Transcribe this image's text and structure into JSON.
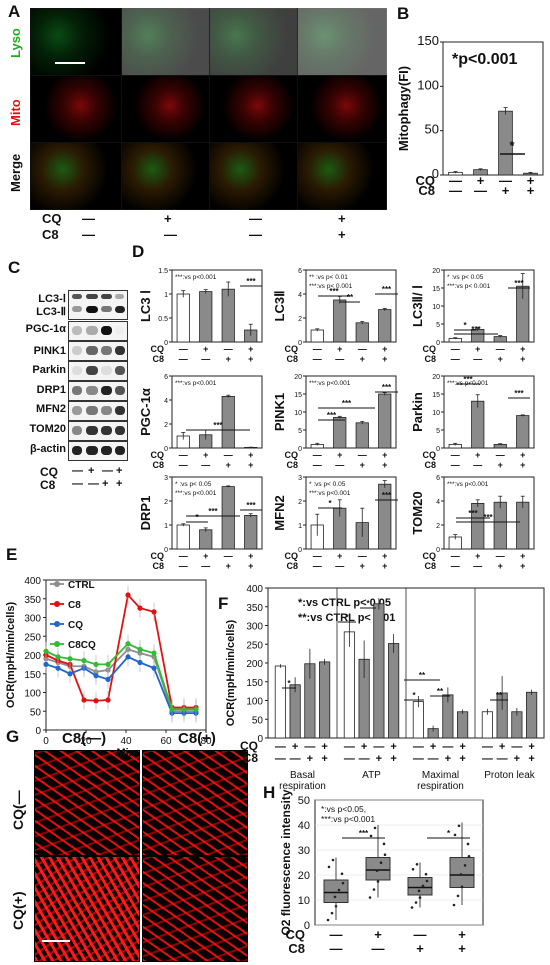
{
  "panels": {
    "A": {
      "label": "A",
      "channels": [
        "Lyso",
        "Mito",
        "Merge"
      ],
      "channel_colors": [
        "#22aa22",
        "#dd1111",
        "#111111"
      ],
      "cq_label": "CQ",
      "c8_label": "C8",
      "cq_marks": [
        "—",
        "+",
        "—",
        "+"
      ],
      "c8_marks": [
        "—",
        "—",
        "—",
        "+"
      ]
    },
    "B": {
      "label": "B"
    },
    "C": {
      "label": "C",
      "rows": [
        "LC3-Ⅰ",
        "LC3-Ⅱ",
        "PGC-1α",
        "PINK1",
        "Parkin",
        "DRP1",
        "MFN2",
        "TOM20",
        "β-actin"
      ],
      "cq_label": "CQ",
      "c8_label": "C8",
      "cq_marks": [
        "—",
        "+",
        "—",
        "+"
      ],
      "c8_marks": [
        "—",
        "—",
        "+",
        "+"
      ]
    },
    "D": {
      "label": "D"
    },
    "E": {
      "label": "E"
    },
    "F": {
      "label": "F"
    },
    "G": {
      "label": "G",
      "col_labels": [
        "C8(—)",
        "C8(+)"
      ],
      "row_labels": [
        "CQ(—",
        "CQ(+)"
      ]
    },
    "H": {
      "label": "H"
    }
  },
  "cond": {
    "cq": [
      "—",
      "+",
      "—",
      "+"
    ],
    "c8": [
      "—",
      "—",
      "+",
      "+"
    ]
  },
  "chart_data": [
    {
      "id": "B",
      "type": "bar",
      "ylabel": "Mitophagy(FI)",
      "ylim": [
        0,
        150
      ],
      "yticks": [
        0,
        50,
        100,
        150
      ],
      "annotation": "*p<0.001",
      "values": [
        3,
        6,
        72,
        2
      ],
      "errors": [
        1,
        1,
        4,
        1
      ],
      "sig": "*"
    },
    {
      "id": "D-LC3I",
      "type": "bar",
      "ylabel": "LC3 Ⅰ",
      "ylim": [
        0,
        1.5
      ],
      "yticks": [
        0,
        0.5,
        1,
        1.5
      ],
      "legend": [
        "***:vs p<0.001"
      ],
      "values": [
        1.0,
        1.05,
        1.1,
        0.25
      ],
      "errors": [
        0.07,
        0.04,
        0.15,
        0.12
      ]
    },
    {
      "id": "D-LC3II",
      "type": "bar",
      "ylabel": "LC3Ⅱ",
      "ylim": [
        0,
        6
      ],
      "yticks": [
        0,
        2,
        4,
        6
      ],
      "legend": [
        "** :vs p< 0.01",
        "***:vs p< 0.001"
      ],
      "values": [
        1.0,
        3.5,
        1.6,
        2.7
      ],
      "errors": [
        0.1,
        0.3,
        0.1,
        0.1
      ]
    },
    {
      "id": "D-LC3ratio",
      "type": "bar",
      "ylabel": "LC3Ⅱ/ Ⅰ",
      "ylim": [
        0,
        20
      ],
      "yticks": [
        0,
        5,
        10,
        15,
        20
      ],
      "legend": [
        "* :vs p< 0.05",
        "***:vs p< 0.001"
      ],
      "values": [
        1.0,
        3.5,
        1.5,
        15.5
      ],
      "errors": [
        0.2,
        0.4,
        0.3,
        3.5
      ]
    },
    {
      "id": "D-PGC",
      "type": "bar",
      "ylabel": "PGC-1α",
      "ylim": [
        0,
        6
      ],
      "yticks": [
        0,
        2,
        4,
        6
      ],
      "legend": [
        "***:vs p<0.001"
      ],
      "values": [
        1.0,
        1.1,
        4.3,
        0.05
      ],
      "errors": [
        0.3,
        0.4,
        0.1,
        0.02
      ]
    },
    {
      "id": "D-PINK1",
      "type": "bar",
      "ylabel": "PINK1",
      "ylim": [
        0,
        20
      ],
      "yticks": [
        0,
        5,
        10,
        15,
        20
      ],
      "legend": [
        "***:vs p<0.001"
      ],
      "values": [
        1.0,
        8.5,
        7.0,
        15.0
      ],
      "errors": [
        0.3,
        0.3,
        0.4,
        0.4
      ]
    },
    {
      "id": "D-Parkin",
      "type": "bar",
      "ylabel": "Parkin",
      "ylim": [
        0,
        20
      ],
      "yticks": [
        0,
        5,
        10,
        15,
        20
      ],
      "legend": [
        "***:vs p<0.001"
      ],
      "values": [
        1.0,
        13.0,
        1.0,
        9.0
      ],
      "errors": [
        0.3,
        1.8,
        0.2,
        0.2
      ]
    },
    {
      "id": "D-DRP1",
      "type": "bar",
      "ylabel": "DRP1",
      "ylim": [
        0,
        3
      ],
      "yticks": [
        0,
        1,
        2,
        3
      ],
      "legend": [
        "* :vs p< 0.05",
        "***:vs p<0.001"
      ],
      "values": [
        1.0,
        0.8,
        2.6,
        1.4
      ],
      "errors": [
        0.05,
        0.08,
        0.03,
        0.07
      ]
    },
    {
      "id": "D-MFN2",
      "type": "bar",
      "ylabel": "MFN2",
      "ylim": [
        0,
        3
      ],
      "yticks": [
        0,
        1,
        2,
        3
      ],
      "legend": [
        "* :vs p< 0.05",
        "***:vs p<0.001"
      ],
      "values": [
        1.0,
        1.7,
        1.1,
        2.7
      ],
      "errors": [
        0.45,
        0.35,
        0.6,
        0.15
      ]
    },
    {
      "id": "D-TOM20",
      "type": "bar",
      "ylabel": "TOM20",
      "ylim": [
        0,
        6
      ],
      "yticks": [
        0,
        2,
        4,
        6
      ],
      "legend": [
        "***:vs p<0.001"
      ],
      "values": [
        1.0,
        3.8,
        3.9,
        3.9
      ],
      "errors": [
        0.2,
        0.3,
        0.5,
        0.5
      ]
    },
    {
      "id": "E",
      "type": "line",
      "xlabel": "Min",
      "ylabel": "OCR(mpH/min/cells)",
      "xlim": [
        0,
        80
      ],
      "ylim": [
        0,
        400
      ],
      "xticks": [
        0,
        20,
        40,
        60,
        80
      ],
      "yticks": [
        0,
        50,
        100,
        150,
        200,
        250,
        300,
        350,
        400
      ],
      "x": [
        0,
        6,
        12,
        19,
        25,
        31,
        41,
        47,
        54,
        63,
        69,
        75
      ],
      "series": [
        {
          "name": "CTRL",
          "color": "#8c8c8c",
          "values": [
            190,
            180,
            170,
            170,
            155,
            160,
            215,
            205,
            195,
            50,
            50,
            50
          ]
        },
        {
          "name": "C8",
          "color": "#e21111",
          "values": [
            200,
            185,
            175,
            80,
            78,
            80,
            360,
            325,
            315,
            60,
            60,
            60
          ]
        },
        {
          "name": "CQ",
          "color": "#2266cc",
          "values": [
            175,
            165,
            150,
            165,
            145,
            135,
            195,
            180,
            165,
            45,
            45,
            45
          ]
        },
        {
          "name": "C8CQ",
          "color": "#33bb33",
          "values": [
            210,
            195,
            190,
            185,
            175,
            175,
            230,
            215,
            205,
            55,
            55,
            55
          ]
        }
      ]
    },
    {
      "id": "F",
      "type": "bar",
      "ylabel": "OCR(mpH/min/cells)",
      "ylim": [
        0,
        400
      ],
      "yticks": [
        0,
        50,
        100,
        150,
        200,
        250,
        300,
        350,
        400
      ],
      "legend": [
        "*:vs CTRL p< 0.05",
        "**:vs CTRL p< 0.01"
      ],
      "groups": [
        {
          "name": "Basal\nrespiration",
          "values": [
            192,
            142,
            198,
            203
          ],
          "errors": [
            5,
            20,
            40,
            8
          ]
        },
        {
          "name": "ATP",
          "values": [
            283,
            210,
            358,
            252
          ],
          "errors": [
            40,
            50,
            15,
            25
          ]
        },
        {
          "name": "Maximal\nrespiration",
          "values": [
            97,
            25,
            115,
            70
          ],
          "errors": [
            15,
            8,
            20,
            6
          ]
        },
        {
          "name": "Proton leak",
          "values": [
            70,
            120,
            70,
            122
          ],
          "errors": [
            8,
            45,
            10,
            7
          ]
        }
      ]
    },
    {
      "id": "H",
      "type": "box",
      "ylabel": "O2 fluorescence intensity",
      "ylim": [
        0,
        50
      ],
      "yticks": [
        0,
        10,
        20,
        30,
        40,
        50
      ],
      "legend": [
        "*:vs p<0.05,",
        "***:vs p<0.001"
      ],
      "boxes": [
        {
          "q1": 9,
          "median": 13,
          "q3": 18,
          "min": 2,
          "max": 27
        },
        {
          "q1": 18,
          "median": 22,
          "q3": 27,
          "min": 11,
          "max": 40
        },
        {
          "q1": 12,
          "median": 15,
          "q3": 19,
          "min": 7,
          "max": 25
        },
        {
          "q1": 15,
          "median": 20,
          "q3": 27,
          "min": 8,
          "max": 41
        }
      ]
    }
  ]
}
